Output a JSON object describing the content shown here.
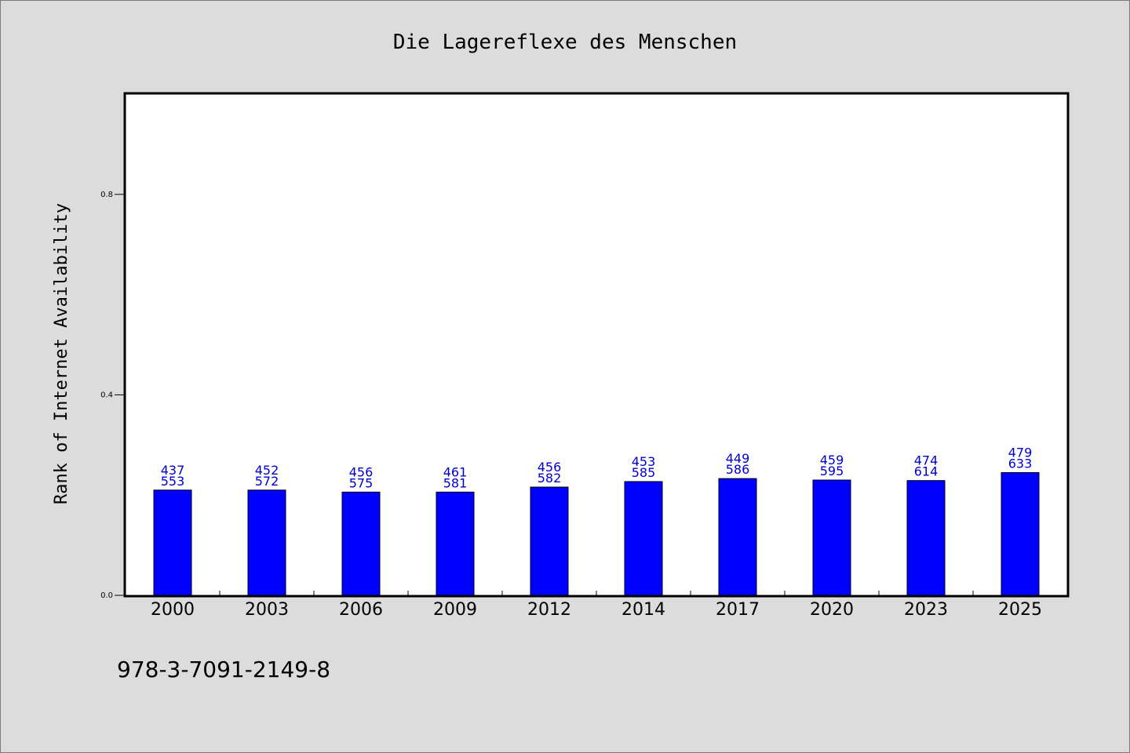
{
  "chart_data": {
    "type": "bar",
    "title": "Die Lagereflexe des Menschen",
    "xlabel": "",
    "ylabel": "Rank of Internet Availability",
    "categories": [
      "2000",
      "2003",
      "2006",
      "2009",
      "2012",
      "2014",
      "2017",
      "2020",
      "2023",
      "2025"
    ],
    "values": [
      0.21,
      0.21,
      0.206,
      0.206,
      0.216,
      0.227,
      0.233,
      0.23,
      0.229,
      0.245
    ],
    "bar_labels_top": [
      "437",
      "452",
      "456",
      "461",
      "456",
      "453",
      "449",
      "459",
      "474",
      "479"
    ],
    "bar_labels_bottom": [
      "553",
      "572",
      "575",
      "581",
      "582",
      "585",
      "586",
      "595",
      "614",
      "633"
    ],
    "yticks": [
      "0.0",
      "0.4",
      "0.8"
    ],
    "ylim": [
      0,
      1.0
    ],
    "grid": false,
    "colors": {
      "bar": "#0000ff",
      "bar_label": "#0000cc",
      "background": "#dcdcdc",
      "plot_area": "#ffffff"
    }
  },
  "footer": {
    "text": "978-3-7091-2149-8"
  }
}
